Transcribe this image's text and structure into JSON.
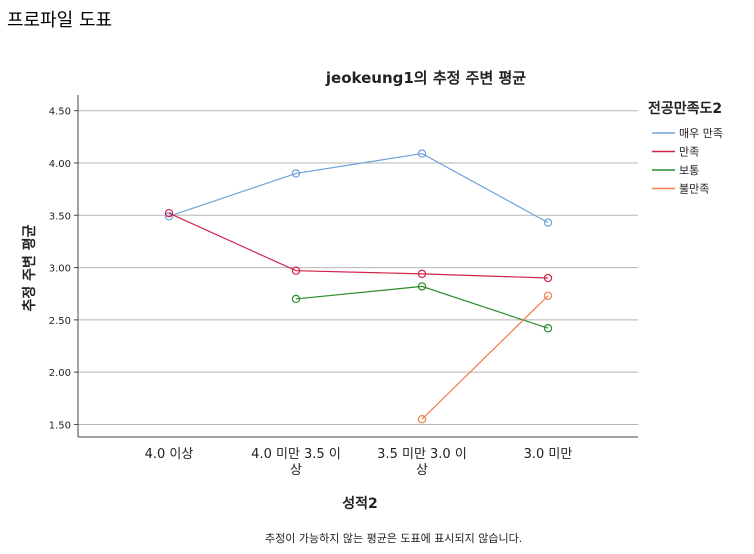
{
  "page": {
    "title": "프로파일 도표",
    "footnote": "추정이 가능하지 않는 평균은 도표에 표시되지 않습니다."
  },
  "chart_data": {
    "type": "line",
    "title": "jeokeung1의 추정 주변 평균",
    "xlabel": "성적2",
    "ylabel": "추정 주변 평균",
    "categories": [
      "4.0 이상",
      "4.0 미만 3.5 이상",
      "3.5 미만 3.0 이상",
      "3.0 미만"
    ],
    "category_lines": [
      [
        "4.0 이상"
      ],
      [
        "4.0 미만 3.5 이",
        "상"
      ],
      [
        "3.5 미만 3.0 이",
        "상"
      ],
      [
        "3.0 미만"
      ]
    ],
    "yticks": [
      "1.50",
      "2.00",
      "2.50",
      "3.00",
      "3.50",
      "4.00",
      "4.50"
    ],
    "ylim": [
      1.38,
      4.65
    ],
    "grid": "horizontal",
    "legend_title": "전공만족도2",
    "legend_position": "right",
    "series": [
      {
        "name": "매우 만족",
        "color": "#6fa1dc",
        "values": [
          3.49,
          3.9,
          4.09,
          3.43
        ]
      },
      {
        "name": "만족",
        "color": "#d0234b",
        "values": [
          3.52,
          2.97,
          2.94,
          2.9
        ]
      },
      {
        "name": "보통",
        "color": "#2e8b2e",
        "values": [
          null,
          2.7,
          2.82,
          2.42
        ]
      },
      {
        "name": "불만족",
        "color": "#ee7e4d",
        "values": [
          null,
          null,
          1.55,
          2.73
        ]
      }
    ]
  }
}
